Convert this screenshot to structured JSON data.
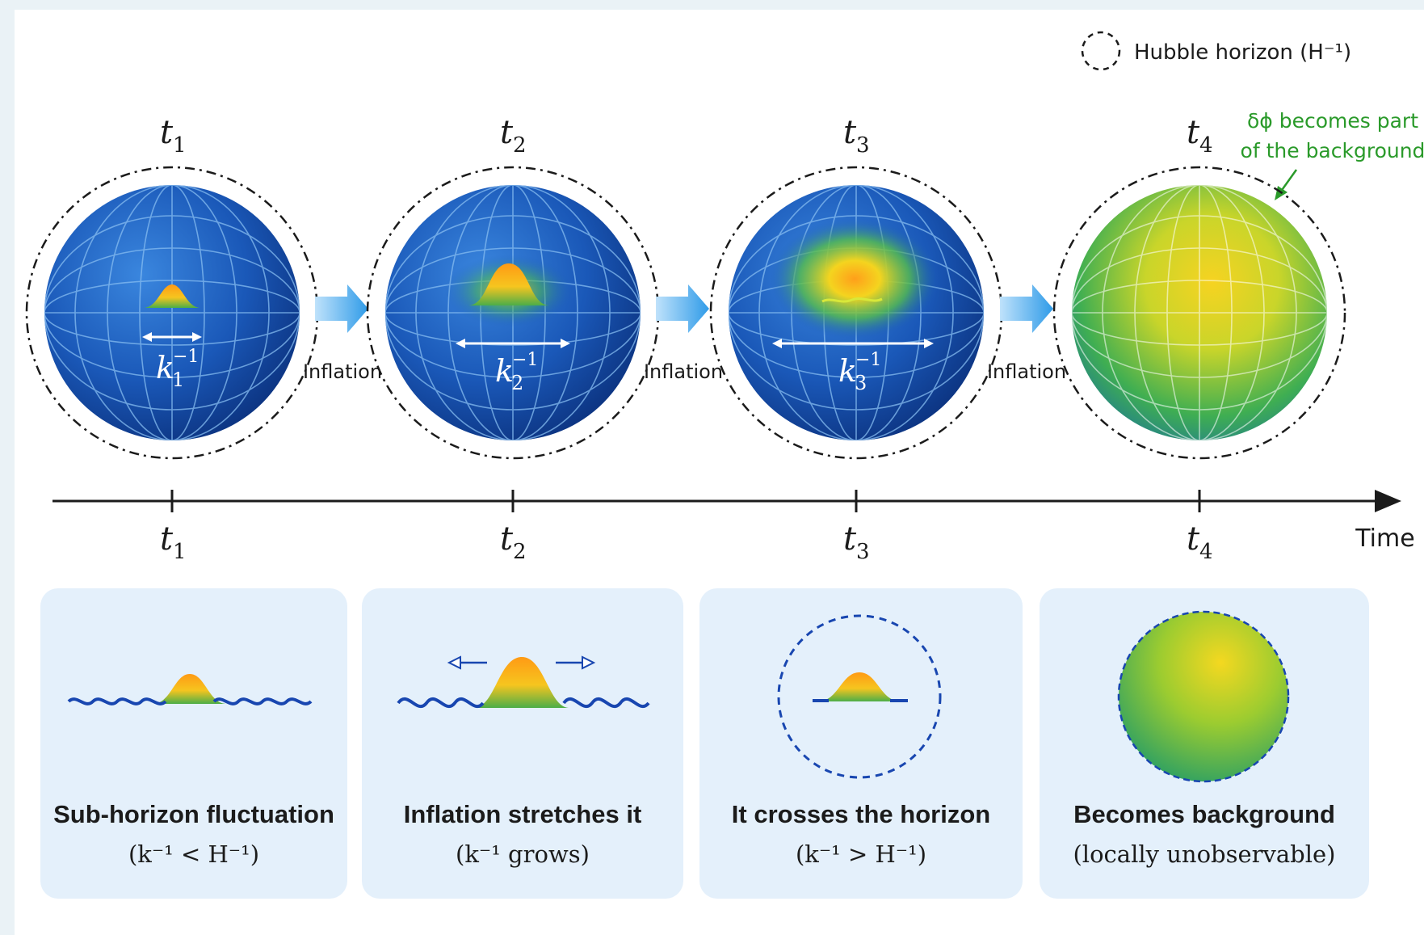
{
  "legend": {
    "horizon_label": "Hubble horizon (H⁻¹)"
  },
  "stages": [
    {
      "time_label": "t",
      "time_sub": "1",
      "k_label": "k",
      "k_sup": "−1",
      "k_sub": "1"
    },
    {
      "time_label": "t",
      "time_sub": "2",
      "k_label": "k",
      "k_sup": "−1",
      "k_sub": "2"
    },
    {
      "time_label": "t",
      "time_sub": "3",
      "k_label": "k",
      "k_sup": "−1",
      "k_sub": "3"
    },
    {
      "time_label": "t",
      "time_sub": "4"
    }
  ],
  "arrow_label": "Inflation",
  "annotation": {
    "line1": "δϕ becomes part",
    "line2": "of the background"
  },
  "timeline": {
    "axis_label": "Time"
  },
  "panels": [
    {
      "title": "Sub-horizon fluctuation",
      "subtitle": "(k⁻¹ < H⁻¹)"
    },
    {
      "title": "Inflation stretches it",
      "subtitle": "(k⁻¹ grows)"
    },
    {
      "title": "It crosses the horizon",
      "subtitle": "(k⁻¹ > H⁻¹)"
    },
    {
      "title": "Becomes background",
      "subtitle": "(locally unobservable)"
    }
  ],
  "colors": {
    "sphere_deep": "#0b3a8c",
    "sphere_mid": "#1f63c6",
    "grid": "#7fb6ee",
    "fluctuation_core": "#ffb020",
    "fluctuation_edge": "#3aa84a",
    "arrow": "#2f9be8",
    "note_green": "#2a9a2a",
    "panel_bg": "#e4f0fb",
    "wave": "#1846b0"
  }
}
